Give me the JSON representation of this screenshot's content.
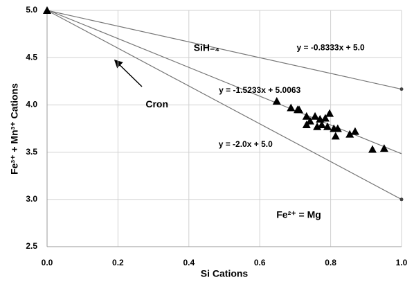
{
  "chart_data": {
    "type": "scatter",
    "xlabel": "Si Cations",
    "ylabel": "Fe³⁺ + Mn³⁺ Cations",
    "xlim": [
      0,
      1
    ],
    "xticks": [
      {
        "value": 0,
        "label": "0.0"
      },
      0.2,
      0.4,
      0.6,
      0.8,
      {
        "value": 1,
        "label": "1.0"
      }
    ],
    "ylim": [
      2.5,
      5
    ],
    "yticks": [
      2.5,
      {
        "value": 3,
        "label": "3.0"
      },
      3.5,
      {
        "value": 4,
        "label": "4.0"
      },
      4.5,
      {
        "value": 5,
        "label": "5.0"
      }
    ],
    "grid": true,
    "lines": [
      {
        "color": "#777777",
        "x": [
          0,
          1
        ],
        "values": [
          5.0,
          4.1667
        ],
        "end_marker": true
      },
      {
        "color": "#777777",
        "x": [
          0,
          1
        ],
        "values": [
          5.0063,
          3.483
        ],
        "end_marker": false
      },
      {
        "color": "#777777",
        "x": [
          0,
          1
        ],
        "values": [
          5.0,
          3.0
        ],
        "end_marker": true
      }
    ],
    "series": [
      {
        "color": "#000000",
        "x": [
          0,
          0.648,
          0.688,
          0.707,
          0.711,
          0.732,
          0.742,
          0.756,
          0.77,
          0.785,
          0.797,
          0.732,
          0.762,
          0.775,
          0.791,
          0.809,
          0.82,
          0.814,
          0.854,
          0.869,
          0.918,
          0.951
        ],
        "values": [
          5.0,
          4.04,
          3.97,
          3.95,
          3.95,
          3.88,
          3.83,
          3.88,
          3.85,
          3.86,
          3.91,
          3.79,
          3.77,
          3.79,
          3.77,
          3.75,
          3.75,
          3.67,
          3.69,
          3.72,
          3.53,
          3.54
        ]
      }
    ],
    "annotations": [
      {
        "text": "SiH₋₄",
        "x": 0.45,
        "y": 4.6
      },
      {
        "text": "y = -0.8333x + 5.0",
        "x": 0.8,
        "y": 4.6
      },
      {
        "text": "y = -1.5233x + 5.0063",
        "x": 0.6,
        "y": 4.15
      },
      {
        "text": "Cron",
        "x": 0.31,
        "y": 4.0
      },
      {
        "text": "y = -2.0x + 5.0",
        "x": 0.56,
        "y": 3.58
      },
      {
        "text": "Fe²⁺ = Mg",
        "x": 0.71,
        "y": 2.83
      }
    ]
  }
}
